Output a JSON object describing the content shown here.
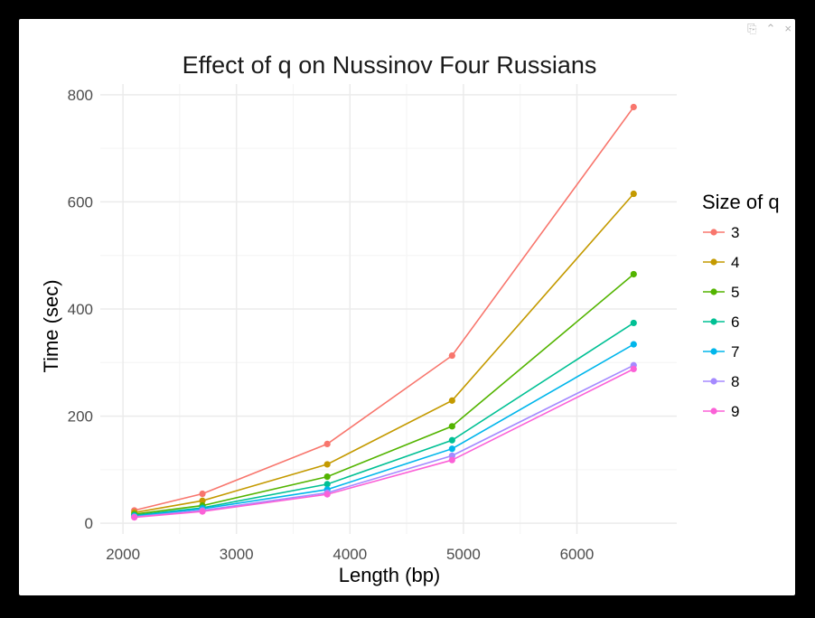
{
  "window": {
    "controls": {
      "export_icon": "⎘",
      "collapse_icon": "⌃",
      "close_icon": "×"
    }
  },
  "chart_data": {
    "type": "line",
    "title": "Effect of q on Nussinov Four Russians",
    "xlabel": "Length (bp)",
    "ylabel": "Time (sec)",
    "xlim": [
      1800,
      6880
    ],
    "ylim": [
      -20,
      820
    ],
    "xticks": [
      2000,
      3000,
      4000,
      5000,
      6000
    ],
    "xtick_labels": [
      "2000",
      "3000",
      "4000",
      "5000",
      "6000"
    ],
    "yticks": [
      0,
      200,
      400,
      600,
      800
    ],
    "ytick_labels": [
      "0",
      "200",
      "400",
      "600",
      "800"
    ],
    "grid": true,
    "legend_title": "Size of q",
    "legend_position": "right",
    "x": [
      2100,
      2700,
      3800,
      4900,
      6500
    ],
    "series": [
      {
        "name": "3",
        "color": "#F8766D",
        "values": [
          24,
          55,
          148,
          313,
          777
        ]
      },
      {
        "name": "4",
        "color": "#C49A00",
        "values": [
          20,
          42,
          110,
          229,
          615
        ]
      },
      {
        "name": "5",
        "color": "#53B400",
        "values": [
          17,
          33,
          87,
          181,
          465
        ]
      },
      {
        "name": "6",
        "color": "#00C094",
        "values": [
          15,
          29,
          73,
          155,
          374
        ]
      },
      {
        "name": "7",
        "color": "#00B6EB",
        "values": [
          13,
          27,
          63,
          139,
          334
        ]
      },
      {
        "name": "8",
        "color": "#A58AFF",
        "values": [
          12,
          24,
          57,
          126,
          295
        ]
      },
      {
        "name": "9",
        "color": "#FB61D7",
        "values": [
          11,
          22,
          54,
          118,
          288
        ]
      }
    ]
  }
}
